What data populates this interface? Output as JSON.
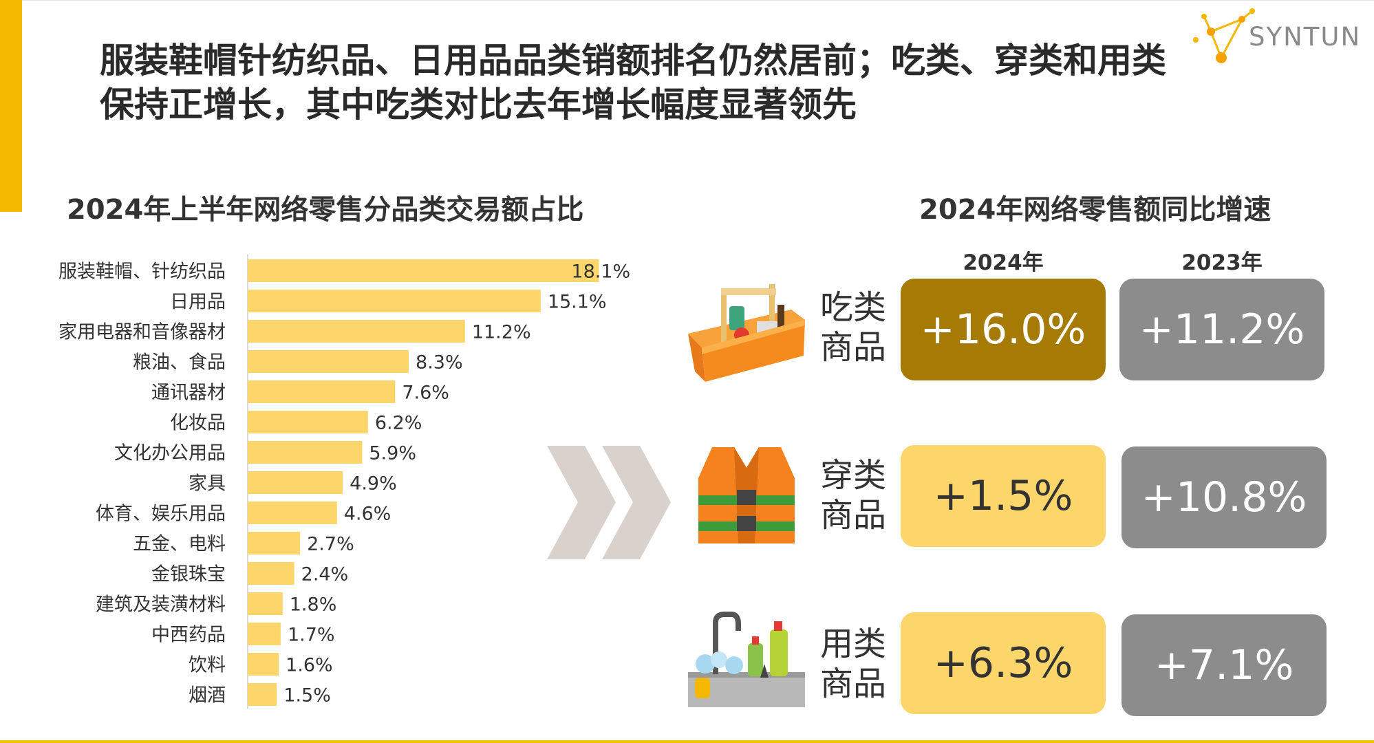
{
  "headline": "服装鞋帽针纺织品、日用品品类销额排名仍然居前；吃类、穿类和用类保持正增长，其中吃类对比去年增长幅度显著领先",
  "logo": {
    "text": "SYNTUN"
  },
  "colors": {
    "accent": "#F5B800",
    "bar": "#FDD66B",
    "highlight": "#A57A05",
    "gray_badge": "#8C8C8C"
  },
  "left_chart": {
    "title": "2024年上半年网络零售分品类交易额占比"
  },
  "right_panel": {
    "title": "2024年网络零售额同比增速",
    "columns": [
      "2024年",
      "2023年"
    ],
    "rows": [
      {
        "label": "吃类商品",
        "icon": "food-basket-icon",
        "v2024": "+16.0%",
        "v2023": "+11.2%",
        "highlight": true
      },
      {
        "label": "穿类商品",
        "icon": "vest-icon",
        "v2024": "+1.5%",
        "v2023": "+10.8%",
        "highlight": false
      },
      {
        "label": "用类商品",
        "icon": "sink-cleaning-icon",
        "v2024": "+6.3%",
        "v2023": "+7.1%",
        "highlight": false
      }
    ]
  },
  "chart_data": [
    {
      "type": "bar",
      "orientation": "horizontal",
      "title": "2024年上半年网络零售分品类交易额占比",
      "categories": [
        "服装鞋帽、针纺织品",
        "日用品",
        "家用电器和音像器材",
        "粮油、食品",
        "通讯器材",
        "化妆品",
        "文化办公用品",
        "家具",
        "体育、娱乐用品",
        "五金、电料",
        "金银珠宝",
        "建筑及装潢材料",
        "中西药品",
        "饮料",
        "烟酒"
      ],
      "values": [
        18.1,
        15.1,
        11.2,
        8.3,
        7.6,
        6.2,
        5.9,
        4.9,
        4.6,
        2.7,
        2.4,
        1.8,
        1.7,
        1.6,
        1.5
      ],
      "value_labels": [
        "18.1%",
        "15.1%",
        "11.2%",
        "8.3%",
        "7.6%",
        "6.2%",
        "5.9%",
        "4.9%",
        "4.6%",
        "2.7%",
        "2.4%",
        "1.8%",
        "1.7%",
        "1.6%",
        "1.5%"
      ],
      "unit": "%",
      "grid": false,
      "legend": "none"
    },
    {
      "type": "table",
      "title": "2024年网络零售额同比增速",
      "columns": [
        "2024年",
        "2023年"
      ],
      "rows": [
        "吃类商品",
        "穿类商品",
        "用类商品"
      ],
      "values": [
        [
          16.0,
          11.2
        ],
        [
          1.5,
          10.8
        ],
        [
          6.3,
          7.1
        ]
      ],
      "unit": "%"
    }
  ]
}
